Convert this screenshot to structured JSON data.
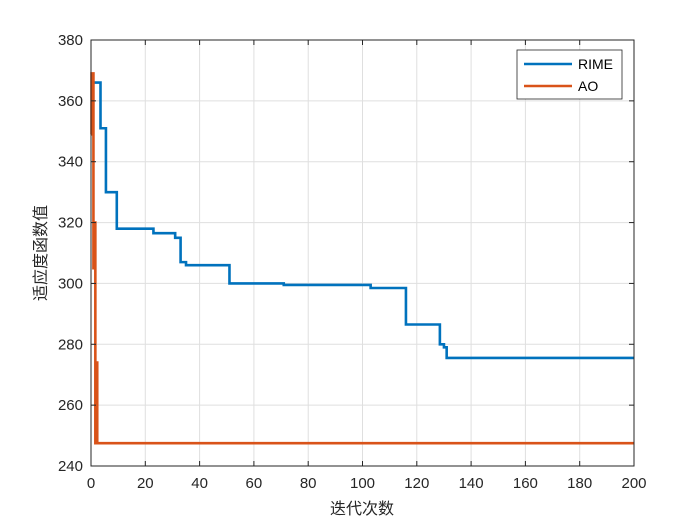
{
  "chart_data": {
    "type": "line",
    "title": "",
    "xlabel": "迭代次数",
    "ylabel": "适应度函数值",
    "xlim": [
      0,
      200
    ],
    "ylim": [
      240,
      380
    ],
    "xticks": [
      0,
      20,
      40,
      60,
      80,
      100,
      120,
      140,
      160,
      180,
      200
    ],
    "yticks": [
      240,
      260,
      280,
      300,
      320,
      340,
      360,
      380
    ],
    "grid": true,
    "legend_position": "top-right",
    "series": [
      {
        "name": "RIME",
        "color": "#0072BD",
        "step": true,
        "points": [
          [
            0,
            366
          ],
          [
            1,
            366
          ],
          [
            2.5,
            366
          ],
          [
            3.5,
            351
          ],
          [
            5,
            351
          ],
          [
            5.5,
            330
          ],
          [
            9,
            330
          ],
          [
            9.5,
            318
          ],
          [
            22,
            318
          ],
          [
            23,
            316.5
          ],
          [
            30,
            316.5
          ],
          [
            31,
            315
          ],
          [
            32,
            315
          ],
          [
            33,
            307
          ],
          [
            35,
            306
          ],
          [
            50,
            306
          ],
          [
            51,
            300
          ],
          [
            70,
            300
          ],
          [
            71,
            299.5
          ],
          [
            102,
            299.5
          ],
          [
            103,
            298.5
          ],
          [
            115,
            298.5
          ],
          [
            116,
            286.5
          ],
          [
            128,
            286.5
          ],
          [
            128.5,
            280
          ],
          [
            130,
            279
          ],
          [
            131,
            275.5
          ],
          [
            200,
            275.5
          ]
        ]
      },
      {
        "name": "AO",
        "color": "#D95319",
        "step": true,
        "points": [
          [
            0,
            349
          ],
          [
            0.2,
            369
          ],
          [
            0.6,
            369
          ],
          [
            0.9,
            305
          ],
          [
            1.2,
            320
          ],
          [
            1.6,
            247.5
          ],
          [
            1.9,
            274
          ],
          [
            2.3,
            247.5
          ],
          [
            200,
            247.5
          ]
        ]
      }
    ]
  }
}
